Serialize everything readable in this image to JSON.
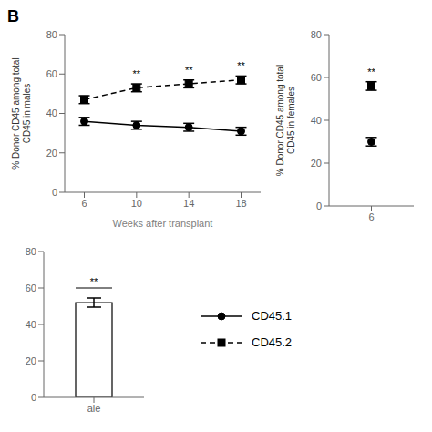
{
  "chart_data": [
    {
      "type": "line",
      "title": "B",
      "x_label": "Weeks after transplant",
      "y_label": "% Donor CD45 among total\nCD45 in males",
      "x": [
        6,
        10,
        14,
        18
      ],
      "xlim": [
        4.5,
        19.5
      ],
      "xticks": [
        6,
        10,
        14,
        18
      ],
      "ylim": [
        0,
        80
      ],
      "yticks": [
        0,
        20,
        40,
        60,
        80
      ],
      "legend": "bottom",
      "series": [
        {
          "name": "CD45.1",
          "color": "#000000",
          "marker": "circle",
          "line_style": "solid",
          "values": [
            36,
            34,
            33,
            31
          ],
          "errors": [
            2,
            2,
            2,
            2
          ]
        },
        {
          "name": "CD45.2",
          "color": "#000000",
          "marker": "square",
          "line_style": "dashed",
          "values": [
            47,
            53,
            55,
            57
          ],
          "errors": [
            2,
            2,
            2,
            2
          ]
        }
      ],
      "annotations": [
        {
          "x": 10,
          "text": "**"
        },
        {
          "x": 14,
          "text": "**"
        },
        {
          "x": 18,
          "text": "**"
        }
      ]
    },
    {
      "type": "line",
      "y_label": "% Donor CD45 among total\nCD45 in females",
      "x": [
        6
      ],
      "xlim": [
        4.5,
        7.5
      ],
      "xticks": [
        6
      ],
      "ylim": [
        0,
        80
      ],
      "yticks": [
        0,
        20,
        40,
        60,
        80
      ],
      "series": [
        {
          "name": "CD45.1",
          "color": "#000000",
          "marker": "circle",
          "line_style": "solid",
          "values": [
            30
          ],
          "errors": [
            2
          ]
        },
        {
          "name": "CD45.2",
          "color": "#000000",
          "marker": "square",
          "line_style": "dashed",
          "values": [
            56
          ],
          "errors": [
            2
          ]
        }
      ],
      "annotations": [
        {
          "x": 6,
          "text": "**"
        }
      ]
    },
    {
      "type": "bar",
      "categories": [
        "ale"
      ],
      "values": [
        52
      ],
      "errors": [
        2.5
      ],
      "color": "#ffffff",
      "ylim": [
        0,
        80
      ],
      "yticks": [
        0,
        20,
        40,
        60,
        80
      ],
      "annotations": [
        {
          "category": "ale",
          "text": "**"
        }
      ]
    }
  ]
}
